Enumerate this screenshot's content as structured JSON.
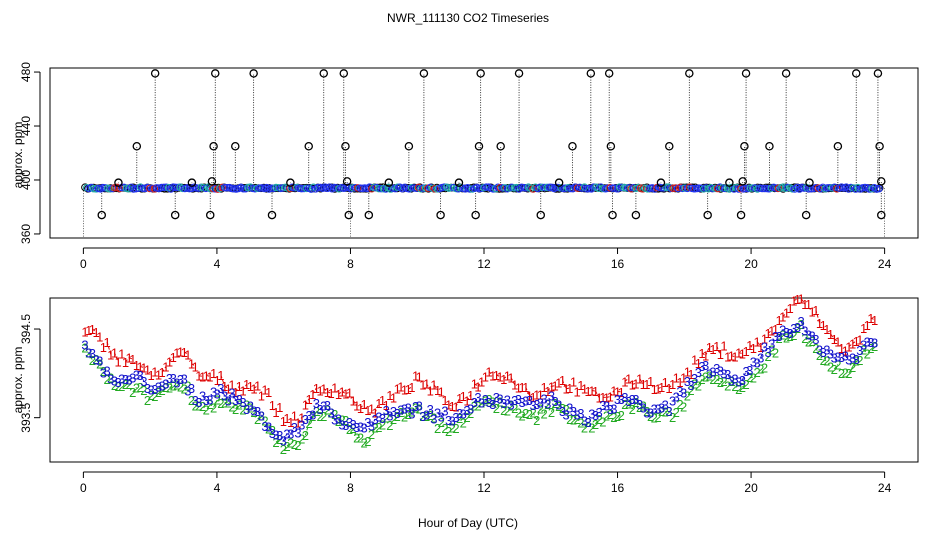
{
  "chart_data": {
    "type": "scatter",
    "title": "NWR_111130  CO2 Timeseries",
    "xlabel": "Hour of Day (UTC)",
    "panels": [
      {
        "id": "top",
        "ylabel": "approx. ppm",
        "xlim": [
          -1,
          25
        ],
        "ylim": [
          357,
          483
        ],
        "xticks": [
          "0",
          "4",
          "8",
          "12",
          "16",
          "20",
          "24"
        ],
        "xtick_values": [
          0,
          4,
          8,
          12,
          16,
          20,
          24
        ],
        "yticks": [
          "360",
          "400",
          "440",
          "480"
        ],
        "ytick_values": [
          360,
          400,
          440,
          480
        ],
        "baseline_ppm": 394,
        "outliers_high": [
          {
            "x": 1.6,
            "y": 425
          },
          {
            "x": 2.15,
            "y": 479
          },
          {
            "x": 3.9,
            "y": 425
          },
          {
            "x": 3.95,
            "y": 479
          },
          {
            "x": 4.55,
            "y": 425
          },
          {
            "x": 5.1,
            "y": 479
          },
          {
            "x": 6.75,
            "y": 425
          },
          {
            "x": 7.2,
            "y": 479
          },
          {
            "x": 7.8,
            "y": 479
          },
          {
            "x": 7.85,
            "y": 425
          },
          {
            "x": 9.75,
            "y": 425
          },
          {
            "x": 10.2,
            "y": 479
          },
          {
            "x": 11.85,
            "y": 425
          },
          {
            "x": 11.9,
            "y": 479
          },
          {
            "x": 12.5,
            "y": 425
          },
          {
            "x": 13.05,
            "y": 479
          },
          {
            "x": 14.65,
            "y": 425
          },
          {
            "x": 15.2,
            "y": 479
          },
          {
            "x": 15.75,
            "y": 479
          },
          {
            "x": 15.8,
            "y": 425
          },
          {
            "x": 17.55,
            "y": 425
          },
          {
            "x": 18.15,
            "y": 479
          },
          {
            "x": 19.8,
            "y": 425
          },
          {
            "x": 19.85,
            "y": 479
          },
          {
            "x": 20.55,
            "y": 425
          },
          {
            "x": 21.05,
            "y": 479
          },
          {
            "x": 22.6,
            "y": 425
          },
          {
            "x": 23.15,
            "y": 479
          },
          {
            "x": 23.8,
            "y": 479
          },
          {
            "x": 23.85,
            "y": 425
          }
        ],
        "outliers_mid": [
          {
            "x": 1.05,
            "y": 398
          },
          {
            "x": 3.25,
            "y": 398
          },
          {
            "x": 3.85,
            "y": 399
          },
          {
            "x": 6.2,
            "y": 398
          },
          {
            "x": 7.9,
            "y": 399
          },
          {
            "x": 9.15,
            "y": 398
          },
          {
            "x": 11.25,
            "y": 398
          },
          {
            "x": 14.25,
            "y": 398
          },
          {
            "x": 17.3,
            "y": 398
          },
          {
            "x": 19.35,
            "y": 398
          },
          {
            "x": 19.75,
            "y": 399
          },
          {
            "x": 21.75,
            "y": 398
          },
          {
            "x": 23.9,
            "y": 399
          }
        ],
        "outliers_low": [
          {
            "x": 0.55,
            "y": 374
          },
          {
            "x": 2.75,
            "y": 374
          },
          {
            "x": 3.8,
            "y": 374
          },
          {
            "x": 5.65,
            "y": 374
          },
          {
            "x": 7.95,
            "y": 374
          },
          {
            "x": 8.55,
            "y": 374
          },
          {
            "x": 10.7,
            "y": 374
          },
          {
            "x": 11.75,
            "y": 374
          },
          {
            "x": 13.7,
            "y": 374
          },
          {
            "x": 15.85,
            "y": 374
          },
          {
            "x": 16.55,
            "y": 374
          },
          {
            "x": 18.7,
            "y": 374
          },
          {
            "x": 19.7,
            "y": 374
          },
          {
            "x": 21.65,
            "y": 374
          },
          {
            "x": 23.9,
            "y": 374
          }
        ]
      },
      {
        "id": "bottom",
        "ylabel": "approx. ppm",
        "xlim": [
          -1,
          25
        ],
        "ylim": [
          393.0,
          394.85
        ],
        "xticks": [
          "0",
          "4",
          "8",
          "12",
          "16",
          "20",
          "24"
        ],
        "xtick_values": [
          0,
          4,
          8,
          12,
          16,
          20,
          24
        ],
        "yticks": [
          "393.5",
          "394.5"
        ],
        "ytick_values": [
          393.5,
          394.5
        ],
        "series": [
          {
            "name": "1",
            "color": "#dd0000",
            "offset_ppm": 0.22
          },
          {
            "name": "2",
            "color": "#22aa22",
            "offset_ppm": -0.08
          },
          {
            "name": "3",
            "color": "#1111cc",
            "offset_ppm": 0.0
          }
        ],
        "mean_curve": [
          [
            0,
            394.3
          ],
          [
            0.5,
            394.1
          ],
          [
            1,
            393.95
          ],
          [
            1.5,
            393.98
          ],
          [
            2,
            393.8
          ],
          [
            2.5,
            393.85
          ],
          [
            3,
            393.95
          ],
          [
            3.5,
            393.75
          ],
          [
            4,
            393.8
          ],
          [
            4.5,
            393.65
          ],
          [
            5,
            393.6
          ],
          [
            5.5,
            393.5
          ],
          [
            6,
            393.3
          ],
          [
            6.5,
            393.35
          ],
          [
            7,
            393.6
          ],
          [
            7.5,
            393.55
          ],
          [
            8,
            393.5
          ],
          [
            8.5,
            393.4
          ],
          [
            9,
            393.5
          ],
          [
            9.5,
            393.55
          ],
          [
            10,
            393.65
          ],
          [
            10.5,
            393.6
          ],
          [
            11,
            393.5
          ],
          [
            11.5,
            393.55
          ],
          [
            12,
            393.7
          ],
          [
            12.5,
            393.75
          ],
          [
            13,
            393.7
          ],
          [
            13.5,
            393.6
          ],
          [
            14,
            393.65
          ],
          [
            14.5,
            393.6
          ],
          [
            15,
            393.55
          ],
          [
            15.5,
            393.58
          ],
          [
            16,
            393.62
          ],
          [
            16.5,
            393.68
          ],
          [
            17,
            393.6
          ],
          [
            17.5,
            393.65
          ],
          [
            18,
            393.8
          ],
          [
            18.5,
            394.0
          ],
          [
            19,
            394.0
          ],
          [
            19.5,
            393.95
          ],
          [
            20,
            394.1
          ],
          [
            20.5,
            394.25
          ],
          [
            21,
            394.45
          ],
          [
            21.5,
            394.55
          ],
          [
            22,
            394.4
          ],
          [
            22.5,
            394.2
          ],
          [
            23,
            394.1
          ],
          [
            23.5,
            394.3
          ],
          [
            23.75,
            394.35
          ]
        ]
      }
    ]
  }
}
